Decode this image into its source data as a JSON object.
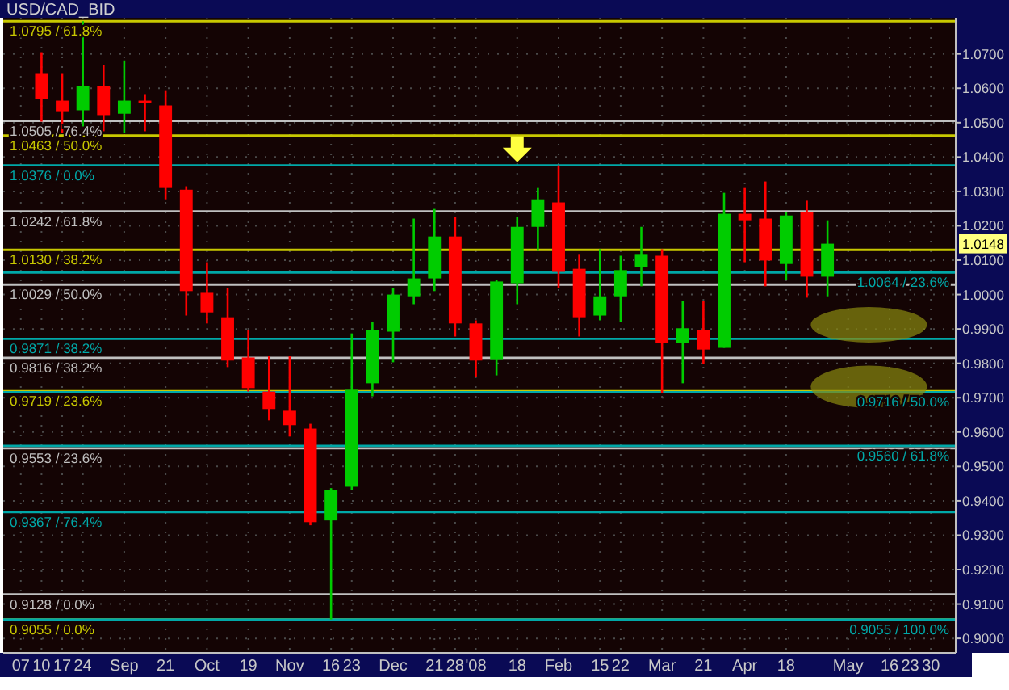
{
  "chart_data": {
    "type": "candlestick",
    "title": "USD/CAD_BID",
    "categories": [
      "07",
      "10",
      "17",
      "24",
      null,
      "Sep",
      null,
      "21",
      null,
      "Oct",
      null,
      "19",
      null,
      "Nov",
      null,
      "16",
      "23",
      null,
      "Dec",
      null,
      "21",
      "28",
      "'08",
      null,
      "18",
      null,
      "Feb",
      null,
      "15",
      "22",
      null,
      "Mar",
      null,
      "21",
      null,
      "Apr",
      null,
      "18",
      null,
      null,
      "May",
      null,
      "16",
      "23",
      "30"
    ],
    "ohlc": [
      null,
      [
        1.0644,
        1.0705,
        1.0503,
        1.0568
      ],
      [
        1.0564,
        1.0644,
        1.047,
        1.0531
      ],
      [
        1.0536,
        1.0795,
        1.0489,
        1.0606
      ],
      [
        1.0606,
        1.0667,
        1.0475,
        1.0522
      ],
      [
        1.0526,
        1.0681,
        1.047,
        1.0564
      ],
      [
        1.0564,
        1.0583,
        1.0475,
        1.0559
      ],
      [
        1.055,
        1.0592,
        1.0277,
        1.031
      ],
      [
        1.0305,
        1.0315,
        0.9939,
        1.001
      ],
      [
        1.0005,
        1.0094,
        0.9916,
        0.9948
      ],
      [
        0.9934,
        1.0019,
        0.9789,
        0.9808
      ],
      [
        0.9817,
        0.9897,
        0.9718,
        0.9728
      ],
      [
        0.9718,
        0.9822,
        0.9634,
        0.9667
      ],
      [
        0.9662,
        0.9822,
        0.9587,
        0.962
      ],
      [
        0.961,
        0.9624,
        0.9329,
        0.9338
      ],
      [
        0.9343,
        0.9437,
        0.9055,
        0.9432
      ],
      [
        0.9441,
        0.9887,
        0.9432,
        0.9723
      ],
      [
        0.9742,
        0.992,
        0.9704,
        0.9897
      ],
      [
        0.9892,
        1.0019,
        0.9803,
        1.0
      ],
      [
        0.9995,
        1.0221,
        0.9972,
        1.0047
      ],
      [
        1.0047,
        1.0249,
        1.001,
        1.0169
      ],
      [
        1.0169,
        1.0226,
        0.9878,
        0.9916
      ],
      [
        0.9916,
        0.9925,
        0.9761,
        0.9808
      ],
      [
        0.9812,
        1.0042,
        0.9765,
        1.0038
      ],
      [
        1.0033,
        1.0226,
        0.9972,
        1.0197
      ],
      [
        1.0197,
        1.031,
        1.0127,
        1.0277
      ],
      [
        1.0268,
        1.0376,
        1.0019,
        1.0066
      ],
      [
        1.0075,
        1.0118,
        0.9878,
        0.9934
      ],
      [
        0.9939,
        1.0132,
        0.9925,
        0.9995
      ],
      [
        0.9995,
        1.0113,
        0.992,
        1.0071
      ],
      [
        1.008,
        1.0197,
        1.0024,
        1.0118
      ],
      [
        1.0113,
        1.0132,
        0.9714,
        0.9859
      ],
      [
        0.9859,
        0.9981,
        0.9742,
        0.9902
      ],
      [
        0.9897,
        0.9981,
        0.9798,
        0.984
      ],
      [
        0.9845,
        1.0296,
        0.9845,
        1.0235
      ],
      [
        1.0235,
        1.031,
        1.0094,
        1.0216
      ],
      [
        1.0221,
        1.0329,
        1.0024,
        1.0099
      ],
      [
        1.0089,
        1.024,
        1.0042,
        1.023
      ],
      [
        1.024,
        1.0273,
        0.9991,
        1.0052
      ],
      [
        1.0052,
        1.0216,
        0.9995,
        1.0148
      ],
      null,
      null,
      null,
      null,
      null
    ],
    "colors": [
      null,
      "#ff0000",
      "#ff0000",
      "#00cc00",
      "#ff0000",
      "#00cc00",
      "#ff0000",
      "#ff0000",
      "#ff0000",
      "#ff0000",
      "#ff0000",
      "#ff0000",
      "#ff0000",
      "#ff0000",
      "#ff0000",
      "#00cc00",
      "#00cc00",
      "#00cc00",
      "#00cc00",
      "#00cc00",
      "#00cc00",
      "#ff0000",
      "#ff0000",
      "#00cc00",
      "#00cc00",
      "#00cc00",
      "#ff0000",
      "#ff0000",
      "#00cc00",
      "#00cc00",
      "#00cc00",
      "#ff0000",
      "#00cc00",
      "#ff0000",
      "#00cc00",
      "#ff0000",
      "#ff0000",
      "#00cc00",
      "#ff0000",
      "#00cc00",
      null,
      null,
      null,
      null,
      null
    ],
    "ylim": [
      0.8958,
      1.0805
    ],
    "yticks": [
      {
        "value": 0.9,
        "label": "0.9000"
      },
      {
        "value": 0.91,
        "label": "0.9100"
      },
      {
        "value": 0.92,
        "label": "0.9200"
      },
      {
        "value": 0.93,
        "label": "0.9300"
      },
      {
        "value": 0.94,
        "label": "0.9400"
      },
      {
        "value": 0.95,
        "label": "0.9500"
      },
      {
        "value": 0.96,
        "label": "0.9600"
      },
      {
        "value": 0.97,
        "label": "0.9700"
      },
      {
        "value": 0.98,
        "label": "0.9800"
      },
      {
        "value": 0.99,
        "label": "0.9900"
      },
      {
        "value": 1.0,
        "label": "1.0000"
      },
      {
        "value": 1.01,
        "label": "1.0100"
      },
      {
        "value": 1.02,
        "label": "1.0200"
      },
      {
        "value": 1.03,
        "label": "1.0300"
      },
      {
        "value": 1.04,
        "label": "1.0400"
      },
      {
        "value": 1.05,
        "label": "1.0500"
      },
      {
        "value": 1.06,
        "label": "1.0600"
      },
      {
        "value": 1.07,
        "label": "1.0700"
      }
    ],
    "grid": true,
    "ref_lines": [
      {
        "axis": "y",
        "value": 1.0795,
        "label": "1.0795 / 61.8%",
        "color": "#c8c800"
      },
      {
        "axis": "y",
        "value": 1.0505,
        "label": "1.0505 / 76.4%",
        "color": "#c0c0c0"
      },
      {
        "axis": "y",
        "value": 1.0463,
        "label": "1.0463 / 50.0%",
        "color": "#c8c800"
      },
      {
        "axis": "y",
        "value": 1.0242,
        "label": "1.0242 / 61.8%",
        "color": "#c0c0c0"
      },
      {
        "axis": "y",
        "value": 1.013,
        "label": "1.0130 / 38.2%",
        "color": "#c8c800"
      },
      {
        "axis": "y",
        "value": 1.0029,
        "label": "1.0029 / 50.0%",
        "color": "#c0c0c0"
      },
      {
        "axis": "y",
        "value": 0.9816,
        "label": "0.9816 / 38.2%",
        "color": "#c0c0c0"
      },
      {
        "axis": "y",
        "value": 0.9719,
        "label": "0.9719 / 23.6%",
        "color": "#c8c800"
      },
      {
        "axis": "y",
        "value": 0.9553,
        "label": "0.9553 / 23.6%",
        "color": "#c0c0c0"
      },
      {
        "axis": "y",
        "value": 0.9128,
        "label": "0.9128 / 0.0%",
        "color": "#c0c0c0"
      },
      {
        "axis": "y",
        "value": 0.9055,
        "label": "0.9055 / 0.0%",
        "color": "#c8c800"
      },
      {
        "axis": "y",
        "value": 1.0376,
        "label": "1.0376 / 0.0%",
        "color": "#00a8a8"
      },
      {
        "axis": "y",
        "value": 1.0064,
        "label": "1.0064 / 23.6%",
        "color": "#00a8a8"
      },
      {
        "axis": "y",
        "value": 0.9871,
        "label": "0.9871 / 38.2%",
        "color": "#00a8a8"
      },
      {
        "axis": "y",
        "value": 0.9716,
        "label": "0.9716 / 50.0%",
        "color": "#00a8a8"
      },
      {
        "axis": "y",
        "value": 0.956,
        "label": "0.9560 / 61.8%",
        "color": "#00a8a8"
      },
      {
        "axis": "y",
        "value": 0.9367,
        "label": "0.9367 / 76.4%",
        "color": "#00a8a8"
      },
      {
        "axis": "y",
        "value": 0.9055,
        "label": "0.9055 / 100.0%",
        "color": "#00a8a8"
      }
    ],
    "annotations": [
      {
        "text": "1.0148",
        "y": 1.0148
      }
    ]
  }
}
